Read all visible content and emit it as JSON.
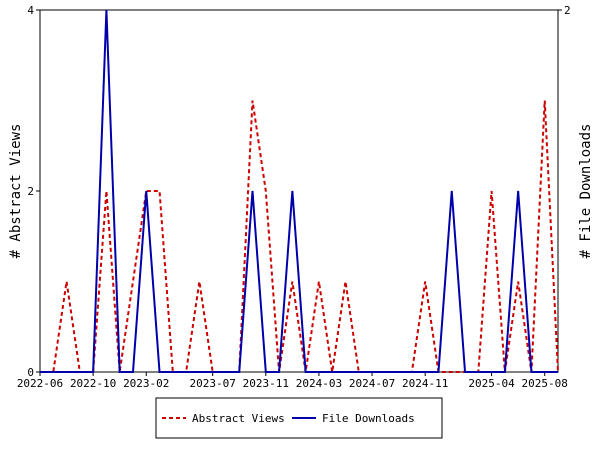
{
  "chart_data": {
    "type": "line",
    "categories": [
      "2022-06",
      null,
      null,
      null,
      "2022-10",
      null,
      null,
      null,
      "2023-02",
      null,
      null,
      null,
      null,
      "2023-07",
      null,
      null,
      null,
      "2023-11",
      null,
      null,
      null,
      "2024-03",
      null,
      null,
      null,
      "2024-07",
      null,
      null,
      null,
      "2024-11",
      null,
      null,
      null,
      null,
      "2025-04",
      null,
      null,
      null,
      "2025-08",
      null
    ],
    "ylabel": "# Abstract Views",
    "y2label": "# File Downloads",
    "ylim": [
      0,
      4
    ],
    "yticks": [
      0,
      2,
      4
    ],
    "y2lim": [
      0,
      2
    ],
    "y2ticks": [
      2
    ],
    "legend": "bottom",
    "series": [
      {
        "name": "Abstract Views",
        "color": "#cc0000",
        "dash": true,
        "values": [
          0,
          0,
          1,
          0,
          0,
          2,
          0,
          1,
          2,
          2,
          0,
          0,
          1,
          0,
          0,
          0,
          3,
          2,
          0,
          1,
          0,
          1,
          0,
          1,
          0,
          0,
          0,
          0,
          0,
          1,
          0,
          0,
          0,
          0,
          2,
          0,
          1,
          0,
          3,
          0
        ]
      },
      {
        "name": "File Downloads",
        "color": "#0000aa",
        "axis": "y2",
        "values": [
          0,
          0,
          0,
          0,
          0,
          2,
          0,
          0,
          1,
          0,
          0,
          0,
          0,
          0,
          0,
          0,
          1,
          0,
          0,
          1,
          0,
          0,
          0,
          0,
          0,
          0,
          0,
          0,
          0,
          0,
          0,
          1,
          0,
          0,
          0,
          0,
          1,
          0,
          0,
          0
        ]
      }
    ]
  }
}
